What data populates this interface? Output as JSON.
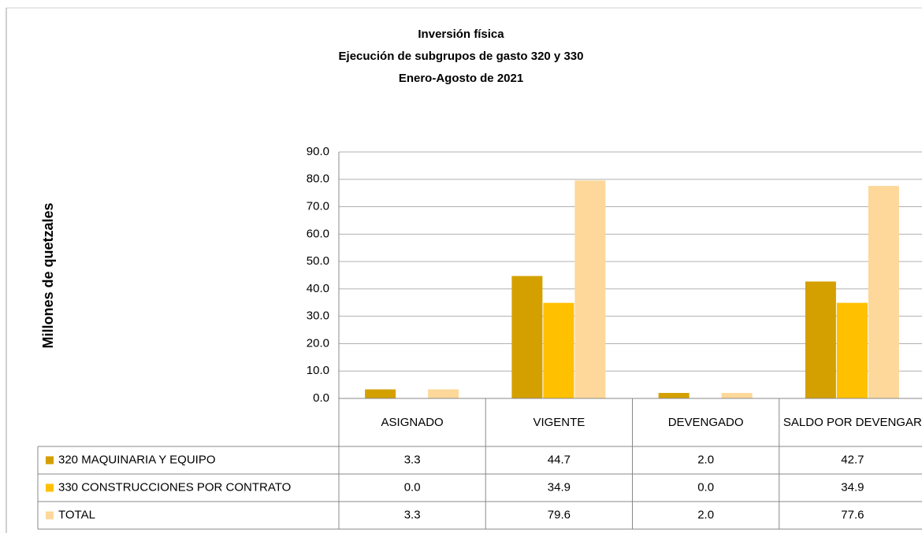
{
  "chart_data": {
    "type": "bar",
    "title": "Inversión física",
    "subtitle": [
      "Ejecución de subgrupos de gasto 320 y 330",
      "Enero-Agosto de 2021"
    ],
    "y_label": "Millones de quetzales",
    "categories": [
      "ASIGNADO",
      "VIGENTE",
      "DEVENGADO",
      "SALDO POR DEVENGAR"
    ],
    "series": [
      {
        "name": "320 MAQUINARIA Y EQUIPO",
        "color": "#d4a000",
        "values": [
          3.3,
          44.7,
          2.0,
          42.7
        ],
        "value_labels": [
          "3.3",
          "44.7",
          "2.0",
          "42.7"
        ]
      },
      {
        "name": "330 CONSTRUCCIONES POR CONTRATO",
        "color": "#ffc000",
        "values": [
          0.0,
          34.9,
          0.0,
          34.9
        ],
        "value_labels": [
          "0.0",
          "34.9",
          "0.0",
          "34.9"
        ]
      },
      {
        "name": "TOTAL",
        "color": "#fdd89a",
        "values": [
          3.3,
          79.6,
          2.0,
          77.6
        ],
        "value_labels": [
          "3.3",
          "79.6",
          "2.0",
          "77.6"
        ]
      }
    ],
    "ylim": [
      0,
      90
    ],
    "yticks": [
      {
        "value": 0,
        "label": "0.0"
      },
      {
        "value": 10,
        "label": "10.0"
      },
      {
        "value": 20,
        "label": "20.0"
      },
      {
        "value": 30,
        "label": "30.0"
      },
      {
        "value": 40,
        "label": "40.0"
      },
      {
        "value": 50,
        "label": "50.0"
      },
      {
        "value": 60,
        "label": "60.0"
      },
      {
        "value": 70,
        "label": "70.0"
      },
      {
        "value": 80,
        "label": "80.0"
      },
      {
        "value": 90,
        "label": "90.0"
      }
    ],
    "grid": true
  }
}
